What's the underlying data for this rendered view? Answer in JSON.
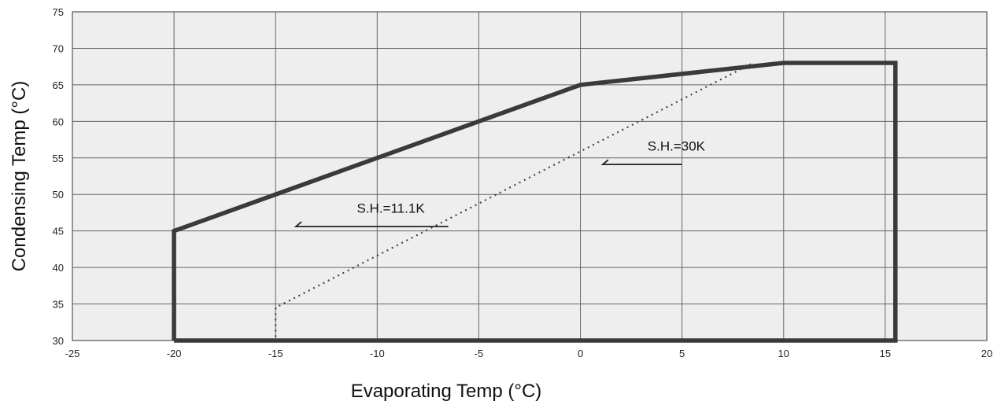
{
  "chart_data": {
    "type": "line",
    "title": "",
    "xlabel": "Evaporating Temp (°C)",
    "ylabel": "Condensing Temp (°C)",
    "xlim": [
      -25,
      20
    ],
    "ylim": [
      30,
      75
    ],
    "xticks": [
      -25,
      -20,
      -15,
      -10,
      -5,
      0,
      5,
      10,
      15,
      20
    ],
    "yticks": [
      30,
      35,
      40,
      45,
      50,
      55,
      60,
      65,
      70,
      75
    ],
    "grid": true,
    "colors": {
      "plot_bg": "#eeeeee",
      "grid": "#666666",
      "envelope": "#3a3a3a",
      "dotted": "#444444"
    },
    "series": [
      {
        "style": "solid-thick",
        "x": [
          -20,
          -20,
          0,
          10,
          15.5,
          15.5,
          -20
        ],
        "y": [
          30,
          45,
          65,
          68,
          68,
          30,
          30
        ]
      },
      {
        "style": "dotted",
        "x": [
          -15,
          -15,
          8.5
        ],
        "y": [
          30.5,
          34.5,
          68
        ]
      }
    ],
    "annotations": [
      {
        "text": "S.H.=11.1K",
        "x": -11,
        "y": 47.5,
        "leader": [
          [
            -6.5,
            45.6
          ],
          [
            -14,
            45.6
          ]
        ]
      },
      {
        "text": "S.H.=30K",
        "x": 3.3,
        "y": 56,
        "leader": [
          [
            5,
            54.1
          ],
          [
            1.1,
            54.1
          ]
        ]
      }
    ]
  }
}
